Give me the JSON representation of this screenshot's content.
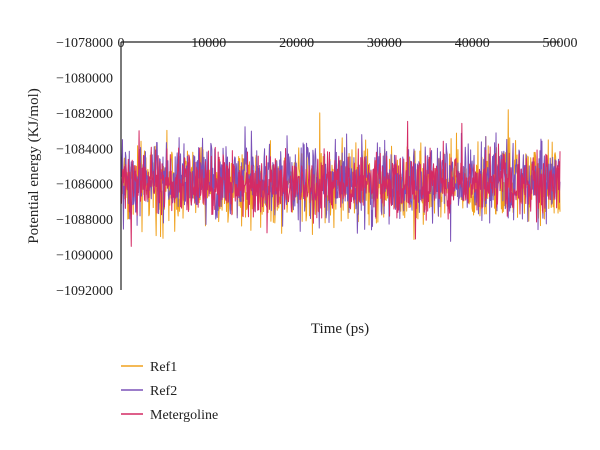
{
  "chart_data": {
    "type": "line",
    "title": "",
    "xlabel": "Time (ps)",
    "ylabel": "Potential energy (KJ/mol)",
    "x_range": [
      0,
      50000
    ],
    "ylim": [
      -1092000,
      -1078000
    ],
    "x_ticks": [
      0,
      10000,
      20000,
      30000,
      40000,
      50000
    ],
    "y_ticks": [
      -1078000,
      -1080000,
      -1082000,
      -1084000,
      -1086000,
      -1088000,
      -1090000,
      -1092000
    ],
    "grid": false,
    "legend_position": "bottom-left",
    "series": [
      {
        "name": "Ref1",
        "color": "#F0A21E",
        "mean": -1086000,
        "amplitude_typical": 1300,
        "min": -1090500,
        "max": -1080500
      },
      {
        "name": "Ref2",
        "color": "#7B52B8",
        "mean": -1085800,
        "amplitude_typical": 1250,
        "min": -1089500,
        "max": -1081500
      },
      {
        "name": "Metergoline",
        "color": "#D42A64",
        "mean": -1086000,
        "amplitude_typical": 1000,
        "min": -1090500,
        "max": -1080200
      }
    ],
    "x_tick_labels": [
      "0",
      "10000",
      "20000",
      "30000",
      "40000",
      "50000"
    ],
    "y_tick_labels": [
      "−1078000",
      "−1080000",
      "−1082000",
      "−1084000",
      "−1086000",
      "−1088000",
      "−1090000",
      "−1092000"
    ]
  }
}
